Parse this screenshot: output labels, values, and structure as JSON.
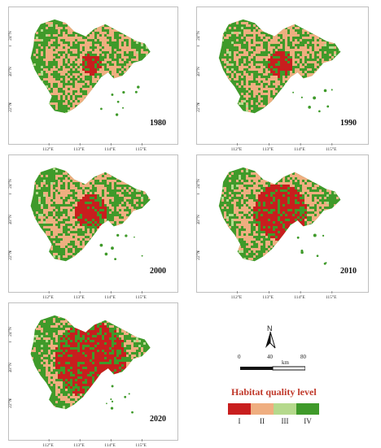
{
  "maps": [
    {
      "year": "1980"
    },
    {
      "year": "1990"
    },
    {
      "year": "2000"
    },
    {
      "year": "2010"
    },
    {
      "year": "2020"
    }
  ],
  "axis": {
    "y_ticks": [
      "24°N",
      "23°N",
      "22°N"
    ],
    "x_ticks": [
      "112°E",
      "113°E",
      "114°E",
      "115°E"
    ]
  },
  "legend": {
    "title": "Habitat quality level",
    "levels": [
      {
        "label": "I",
        "color": "#c81e1e"
      },
      {
        "label": "II",
        "color": "#efae80"
      },
      {
        "label": "III",
        "color": "#b5d98c"
      },
      {
        "label": "IV",
        "color": "#3f9a2a"
      }
    ]
  },
  "scale_bar": {
    "ticks": [
      "0",
      "40",
      "80"
    ],
    "unit": "km"
  },
  "north_arrow": {
    "label": "N"
  }
}
